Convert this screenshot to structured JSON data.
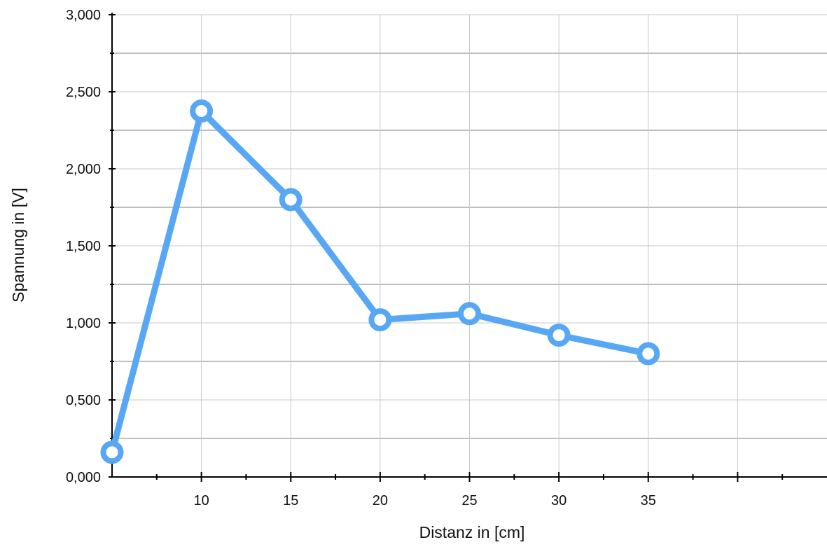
{
  "chart_data": {
    "type": "line",
    "xlabel": "Distanz in [cm]",
    "ylabel": "Spannung in [V]",
    "xlim": [
      5,
      45
    ],
    "ylim": [
      0,
      3
    ],
    "x_ticks": [
      10,
      15,
      20,
      25,
      30,
      35
    ],
    "y_ticks": [
      "0,000",
      "0,500",
      "1,000",
      "1,500",
      "2,000",
      "2,500",
      "3,000"
    ],
    "grid": true,
    "series": [
      {
        "x": [
          5,
          10,
          15,
          20,
          25,
          30,
          35
        ],
        "y": [
          0.16,
          2.375,
          1.8,
          1.02,
          1.06,
          0.92,
          0.8
        ],
        "color": "#57a7f5"
      }
    ]
  }
}
